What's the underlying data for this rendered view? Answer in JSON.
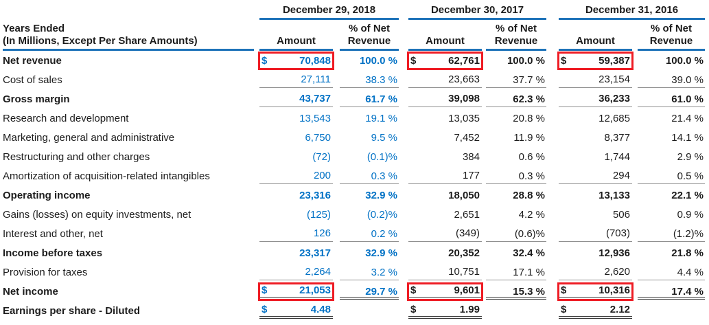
{
  "table": {
    "currency_symbol": "$",
    "col_header": {
      "line1": "Years Ended",
      "line2": "(In Millions, Except Per Share Amounts)"
    },
    "periods": [
      {
        "label": "December 29, 2018"
      },
      {
        "label": "December 30, 2017"
      },
      {
        "label": "December 31, 2016"
      }
    ],
    "subheaders": {
      "amount": "Amount",
      "pct": "% of Net Revenue"
    },
    "colors": {
      "accent_blue": "#0071c5",
      "rule_blue": "#1e73b9",
      "rule_gray": "#909090",
      "highlight_red": "#ee1c24",
      "text_black": "#1c1c1c"
    },
    "rows": [
      {
        "label": "Net revenue",
        "bold": true,
        "dollar": true,
        "redbox": true,
        "u_amt": 0,
        "u_pct": 0,
        "cells": [
          {
            "amount": "70,848",
            "pct": "100.0 %"
          },
          {
            "amount": "62,761",
            "pct": "100.0 %"
          },
          {
            "amount": "59,387",
            "pct": "100.0 %"
          }
        ]
      },
      {
        "label": "Cost of sales",
        "bold": false,
        "dollar": false,
        "redbox": false,
        "u_amt": 1,
        "u_pct": 1,
        "cells": [
          {
            "amount": "27,111",
            "pct": "38.3 %"
          },
          {
            "amount": "23,663",
            "pct": "37.7 %"
          },
          {
            "amount": "23,154",
            "pct": "39.0 %"
          }
        ]
      },
      {
        "label": "Gross margin",
        "bold": true,
        "dollar": false,
        "redbox": false,
        "u_amt": 1,
        "u_pct": 1,
        "cells": [
          {
            "amount": "43,737",
            "pct": "61.7 %"
          },
          {
            "amount": "39,098",
            "pct": "62.3 %"
          },
          {
            "amount": "36,233",
            "pct": "61.0 %"
          }
        ]
      },
      {
        "label": "Research and development",
        "bold": false,
        "dollar": false,
        "redbox": false,
        "u_amt": 0,
        "u_pct": 0,
        "cells": [
          {
            "amount": "13,543",
            "pct": "19.1 %"
          },
          {
            "amount": "13,035",
            "pct": "20.8 %"
          },
          {
            "amount": "12,685",
            "pct": "21.4 %"
          }
        ]
      },
      {
        "label": "Marketing, general and administrative",
        "bold": false,
        "dollar": false,
        "redbox": false,
        "u_amt": 0,
        "u_pct": 0,
        "cells": [
          {
            "amount": "6,750",
            "pct": "9.5 %"
          },
          {
            "amount": "7,452",
            "pct": "11.9 %"
          },
          {
            "amount": "8,377",
            "pct": "14.1 %"
          }
        ]
      },
      {
        "label": "Restructuring and other charges",
        "bold": false,
        "dollar": false,
        "redbox": false,
        "u_amt": 0,
        "u_pct": 0,
        "cells": [
          {
            "amount": "(72)",
            "pct": "(0.1)%"
          },
          {
            "amount": "384",
            "pct": "0.6 %"
          },
          {
            "amount": "1,744",
            "pct": "2.9 %"
          }
        ]
      },
      {
        "label": "Amortization of acquisition-related intangibles",
        "bold": false,
        "dollar": false,
        "redbox": false,
        "u_amt": 1,
        "u_pct": 1,
        "cells": [
          {
            "amount": "200",
            "pct": "0.3 %"
          },
          {
            "amount": "177",
            "pct": "0.3 %"
          },
          {
            "amount": "294",
            "pct": "0.5 %"
          }
        ]
      },
      {
        "label": "Operating income",
        "bold": true,
        "dollar": false,
        "redbox": false,
        "u_amt": 0,
        "u_pct": 0,
        "cells": [
          {
            "amount": "23,316",
            "pct": "32.9 %"
          },
          {
            "amount": "18,050",
            "pct": "28.8 %"
          },
          {
            "amount": "13,133",
            "pct": "22.1 %"
          }
        ]
      },
      {
        "label": "Gains (losses) on equity investments, net",
        "bold": false,
        "dollar": false,
        "redbox": false,
        "u_amt": 0,
        "u_pct": 0,
        "cells": [
          {
            "amount": "(125)",
            "pct": "(0.2)%"
          },
          {
            "amount": "2,651",
            "pct": "4.2 %"
          },
          {
            "amount": "506",
            "pct": "0.9 %"
          }
        ]
      },
      {
        "label": "Interest and other, net",
        "bold": false,
        "dollar": false,
        "redbox": false,
        "u_amt": 1,
        "u_pct": 1,
        "cells": [
          {
            "amount": "126",
            "pct": "0.2 %"
          },
          {
            "amount": "(349)",
            "pct": "(0.6)%"
          },
          {
            "amount": "(703)",
            "pct": "(1.2)%"
          }
        ]
      },
      {
        "label": "Income before taxes",
        "bold": true,
        "dollar": false,
        "redbox": false,
        "u_amt": 0,
        "u_pct": 0,
        "cells": [
          {
            "amount": "23,317",
            "pct": "32.9 %"
          },
          {
            "amount": "20,352",
            "pct": "32.4 %"
          },
          {
            "amount": "12,936",
            "pct": "21.8 %"
          }
        ]
      },
      {
        "label": "Provision for taxes",
        "bold": false,
        "dollar": false,
        "redbox": false,
        "u_amt": 1,
        "u_pct": 1,
        "cells": [
          {
            "amount": "2,264",
            "pct": "3.2 %"
          },
          {
            "amount": "10,751",
            "pct": "17.1 %"
          },
          {
            "amount": "2,620",
            "pct": "4.4 %"
          }
        ]
      },
      {
        "label": "Net income",
        "bold": true,
        "dollar": true,
        "redbox": true,
        "u_amt": 2,
        "u_pct": 2,
        "cells": [
          {
            "amount": "21,053",
            "pct": "29.7 %"
          },
          {
            "amount": "9,601",
            "pct": "15.3 %"
          },
          {
            "amount": "10,316",
            "pct": "17.4 %"
          }
        ]
      },
      {
        "label": "Earnings per share - Diluted",
        "bold": true,
        "dollar": true,
        "redbox": false,
        "u_amt": 2,
        "u_pct": 0,
        "cells": [
          {
            "amount": "4.48",
            "pct": ""
          },
          {
            "amount": "1.99",
            "pct": ""
          },
          {
            "amount": "2.12",
            "pct": ""
          }
        ]
      }
    ]
  }
}
